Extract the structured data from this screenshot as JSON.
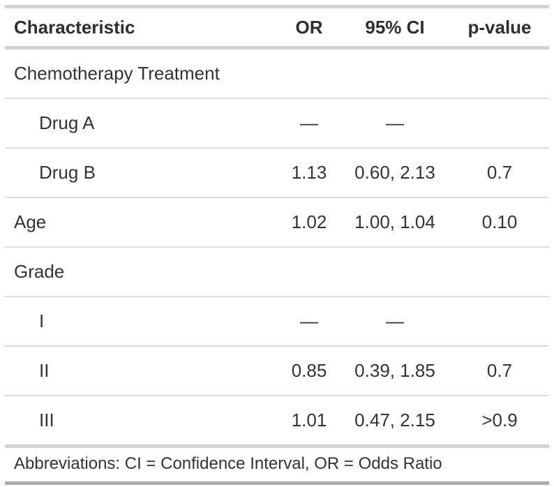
{
  "chart_data": {
    "type": "table",
    "columns": [
      "Characteristic",
      "OR",
      "95% CI",
      "p-value"
    ],
    "column_aligns": [
      "left",
      "center",
      "center",
      "center"
    ],
    "rows": [
      {
        "label": "Chemotherapy Treatment",
        "indent": false,
        "group": true,
        "or": "",
        "ci": "",
        "p": ""
      },
      {
        "label": "Drug A",
        "indent": true,
        "group": false,
        "or": "—",
        "ci": "—",
        "p": ""
      },
      {
        "label": "Drug B",
        "indent": true,
        "group": false,
        "or": "1.13",
        "ci": "0.60, 2.13",
        "p": "0.7"
      },
      {
        "label": "Age",
        "indent": false,
        "group": false,
        "or": "1.02",
        "ci": "1.00, 1.04",
        "p": "0.10"
      },
      {
        "label": "Grade",
        "indent": false,
        "group": true,
        "or": "",
        "ci": "",
        "p": ""
      },
      {
        "label": "I",
        "indent": true,
        "group": false,
        "or": "—",
        "ci": "—",
        "p": ""
      },
      {
        "label": "II",
        "indent": true,
        "group": false,
        "or": "0.85",
        "ci": "0.39, 1.85",
        "p": "0.7"
      },
      {
        "label": "III",
        "indent": true,
        "group": false,
        "or": "1.01",
        "ci": "0.47, 2.15",
        "p": ">0.9"
      }
    ],
    "footnote": "Abbreviations: CI = Confidence Interval, OR = Odds Ratio",
    "layout_hints": {
      "grid": "horizontal-rules-only",
      "header_style": "bold",
      "missing_value_glyph": "—"
    },
    "colors": {
      "text": "#333333",
      "rule_light": "#D2D2D2",
      "rule_row": "#DDDDDD",
      "rule_bottom": "#ACACAC",
      "background": "#ffffff"
    }
  }
}
